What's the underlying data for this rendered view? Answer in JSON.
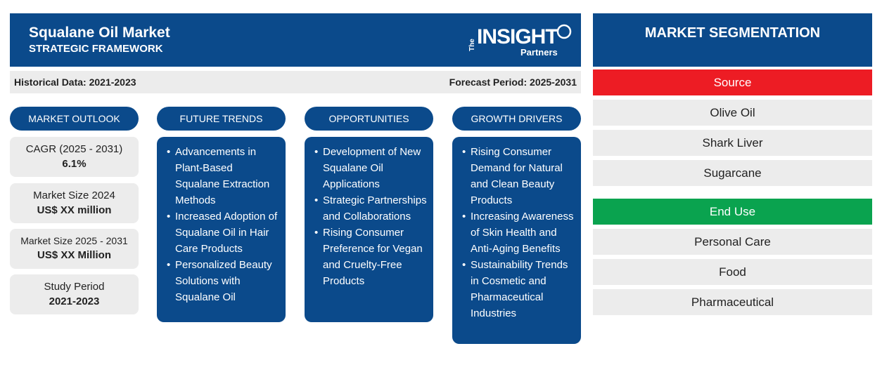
{
  "header": {
    "title": "Squalane Oil Market",
    "subtitle": "STRATEGIC FRAMEWORK",
    "logo": {
      "the": "The",
      "insight": "INSIGHT",
      "partners": "Partners"
    }
  },
  "period": {
    "historical": "Historical Data: 2021-2023",
    "forecast": "Forecast Period: 2025-2031"
  },
  "columns": {
    "outlook": "MARKET OUTLOOK",
    "trends": "FUTURE TRENDS",
    "opportunities": "OPPORTUNITIES",
    "drivers": "GROWTH DRIVERS"
  },
  "outlook": [
    {
      "label": "CAGR (2025 - 2031)",
      "value": "6.1%"
    },
    {
      "label": "Market Size 2024",
      "value": "US$ XX million"
    },
    {
      "label": "Market Size 2025 - 2031",
      "value": "US$ XX Million"
    },
    {
      "label": "Study Period",
      "value": "2021-2023"
    }
  ],
  "trends": [
    "Advancements in Plant-Based Squalane Extraction Methods",
    "Increased Adoption of Squalane Oil in Hair Care Products",
    "Personalized Beauty Solutions with Squalane Oil"
  ],
  "opportunities": [
    "Development of New Squalane Oil Applications",
    "Strategic Partnerships and Collaborations",
    "Rising Consumer Preference for Vegan and Cruelty-Free Products"
  ],
  "drivers": [
    "Rising Consumer Demand for Natural and Clean Beauty Products",
    "Increasing Awareness of Skin Health and Anti-Aging Benefits",
    "Sustainability Trends in Cosmetic and Pharmaceutical Industries"
  ],
  "segmentation": {
    "title": "MARKET SEGMENTATION",
    "source": {
      "heading": "Source",
      "color": "#ed1c24",
      "items": [
        "Olive Oil",
        "Shark Liver",
        "Sugarcane"
      ]
    },
    "end_use": {
      "heading": "End Use",
      "color": "#0aa34f",
      "items": [
        "Personal Care",
        "Food",
        "Pharmaceutical"
      ]
    }
  },
  "colors": {
    "primary": "#0b4a8b",
    "panel": "#ececec"
  }
}
